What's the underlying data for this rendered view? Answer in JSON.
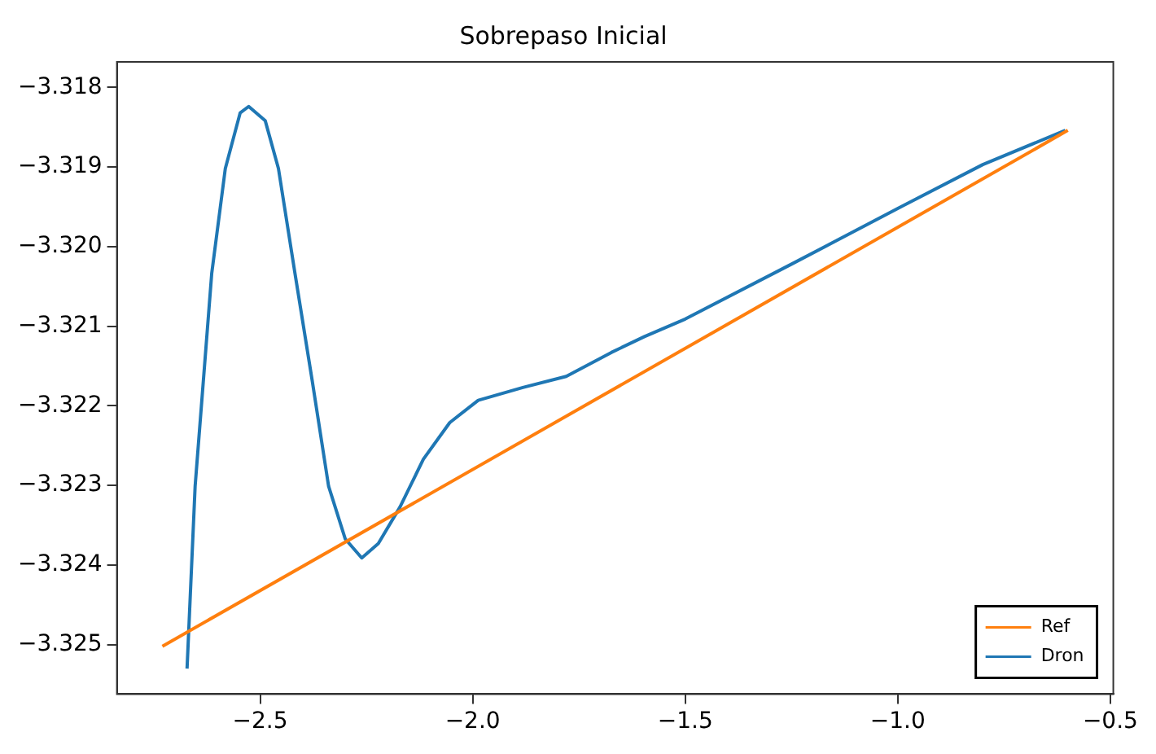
{
  "chart_data": {
    "type": "line",
    "title": "Sobrepaso Inicial",
    "grid": false,
    "legend": "bottom right",
    "marker": "none",
    "line_style": "solid",
    "xlim": [
      -2.837,
      -0.493
    ],
    "xticks": [
      {
        "value": -2.5,
        "label": "−2.5"
      },
      {
        "value": -2.0,
        "label": "−2.0"
      },
      {
        "value": -1.5,
        "label": "−1.5"
      },
      {
        "value": -1.0,
        "label": "−1.0"
      },
      {
        "value": -0.5,
        "label": "−0.5"
      }
    ],
    "ylim": [
      -3.32562,
      -3.31768
    ],
    "yticks": [
      {
        "value": -3.318,
        "label": "−3.318"
      },
      {
        "value": -3.319,
        "label": "−3.319"
      },
      {
        "value": -3.32,
        "label": "−3.320"
      },
      {
        "value": -3.321,
        "label": "−3.321"
      },
      {
        "value": -3.322,
        "label": "−3.322"
      },
      {
        "value": -3.323,
        "label": "−3.323"
      },
      {
        "value": -3.324,
        "label": "−3.324"
      },
      {
        "value": -3.325,
        "label": "−3.325"
      }
    ],
    "series": [
      {
        "name": "Ref",
        "color": "#ff7f0e",
        "x": [
          -2.73,
          -0.6
        ],
        "values": [
          -3.32502,
          -3.31854
        ]
      },
      {
        "name": "Dron",
        "color": "#1f77b4",
        "x": [
          -2.672,
          -2.653,
          -2.614,
          -2.582,
          -2.547,
          -2.527,
          -2.488,
          -2.457,
          -2.418,
          -2.378,
          -2.339,
          -2.3,
          -2.261,
          -2.222,
          -2.171,
          -2.116,
          -2.054,
          -1.987,
          -1.882,
          -1.78,
          -1.674,
          -1.596,
          -1.5,
          -1.25,
          -1.0,
          -0.8,
          -0.606
        ],
        "values": [
          -3.3253,
          -3.32301,
          -3.32034,
          -3.31902,
          -3.31832,
          -3.31824,
          -3.31842,
          -3.31902,
          -3.32034,
          -3.32167,
          -3.32301,
          -3.32367,
          -3.32391,
          -3.32373,
          -3.32327,
          -3.32267,
          -3.32221,
          -3.32193,
          -3.32177,
          -3.32163,
          -3.32133,
          -3.32113,
          -3.32091,
          -3.32022,
          -3.31952,
          -3.31897,
          -3.31854
        ]
      }
    ]
  }
}
